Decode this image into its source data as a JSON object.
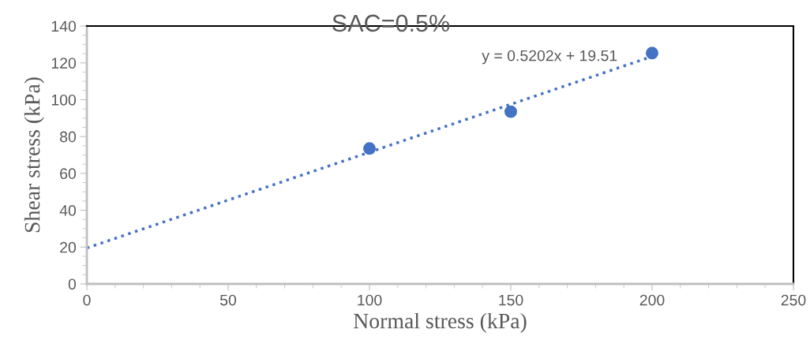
{
  "chart_data": {
    "type": "scatter",
    "title": "SAC=0.5%",
    "xlabel": "Normal stress (kPa)",
    "ylabel": "Shear stress (kPa)",
    "x": [
      100,
      150,
      200
    ],
    "series": [
      {
        "color": "#4472c4",
        "values": [
          73.5,
          93.5,
          125.3
        ],
        "marker": "circle"
      },
      {
        "type": "line",
        "color": "#4472c4",
        "x": [
          0,
          200
        ],
        "values": [
          19.5,
          123.5
        ],
        "line_style": "dotted",
        "marker": "none"
      }
    ],
    "annotations": [
      "y = 0.5202x + 19.51"
    ],
    "xlim": [
      0,
      250
    ],
    "xticks": [
      0,
      50,
      100,
      150,
      200,
      250
    ],
    "ylim": [
      0,
      140
    ],
    "yticks": [
      0,
      20,
      40,
      60,
      80,
      100,
      120,
      140
    ],
    "grid": false,
    "legend": false
  }
}
